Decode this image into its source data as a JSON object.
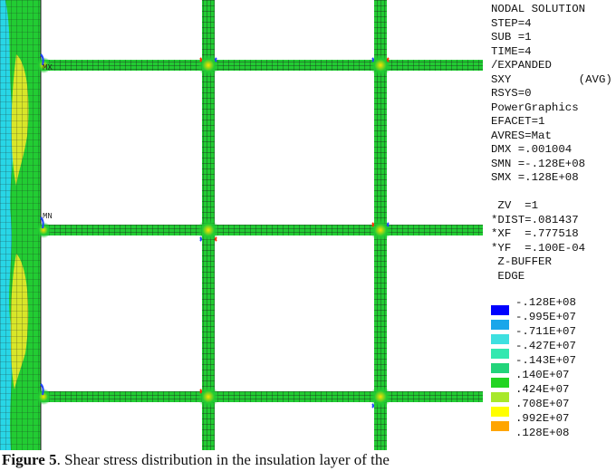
{
  "info_lines": [
    "NODAL SOLUTION",
    "STEP=4",
    "SUB =1",
    "TIME=4",
    "/EXPANDED",
    "SXY          (AVG)",
    "RSYS=0",
    "PowerGraphics",
    "EFACET=1",
    "AVRES=Mat",
    "DMX =.001004",
    "SMN =-.128E+08",
    "SMX =.128E+08"
  ],
  "view_lines": [
    " ZV  =1",
    "*DIST=.081437",
    "*XF  =.777518",
    "*YF  =.100E-04",
    " Z-BUFFER",
    " EDGE"
  ],
  "legend": {
    "values": [
      "-.128E+08",
      "-.995E+07",
      "-.711E+07",
      "-.427E+07",
      "-.143E+07",
      ".140E+07",
      ".424E+07",
      ".708E+07",
      ".992E+07",
      ".128E+08"
    ],
    "colors": [
      "#0000ff",
      "#1aa6ea",
      "#3ee0e0",
      "#33e8b0",
      "#22d47a",
      "#22d422",
      "#a8e82a",
      "#ffff00",
      "#ffa500",
      "#ff0000"
    ]
  },
  "plot": {
    "mx_label": "MX",
    "mn_label": "MN",
    "colors": {
      "mesh_line": "#1c1c1c",
      "strip_green": "#22cc33",
      "strip_cyan": "#2ad2c8",
      "strip_yellow": "#d8e62a",
      "corner_blue": "#2040ff",
      "corner_red": "#ff2a00"
    }
  },
  "caption": {
    "label": "Figure 5",
    "text": ". Shear stress distribution in the insulation layer of the"
  }
}
